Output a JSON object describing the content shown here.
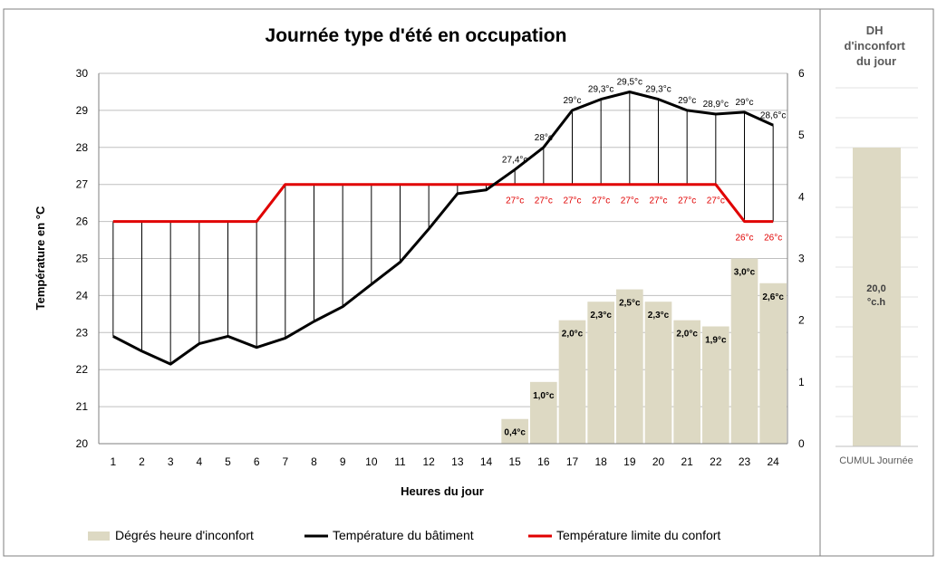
{
  "chart_data": [
    {
      "type": "bar+line",
      "title": "Journée type d'été en occupation",
      "xlabel": "Heures du jour",
      "ylabel": "Température en °C",
      "y2label": "",
      "categories": [
        "1",
        "2",
        "3",
        "4",
        "5",
        "6",
        "7",
        "8",
        "9",
        "10",
        "11",
        "12",
        "13",
        "14",
        "15",
        "16",
        "17",
        "18",
        "19",
        "20",
        "21",
        "22",
        "23",
        "24"
      ],
      "ylim": [
        20,
        30
      ],
      "yticks": [
        "20",
        "21",
        "22",
        "23",
        "24",
        "25",
        "26",
        "27",
        "28",
        "29",
        "30"
      ],
      "y2lim": [
        0,
        6
      ],
      "y2ticks": [
        "0",
        "1",
        "2",
        "3",
        "4",
        "5",
        "6"
      ],
      "grid": true,
      "legend_position": "bottom",
      "series": [
        {
          "name": "Dégrés heure d'inconfort",
          "type": "bar",
          "axis": "y2",
          "color": "#ddd9c3",
          "values": [
            0,
            0,
            0,
            0,
            0,
            0,
            0,
            0,
            0,
            0,
            0,
            0,
            0,
            0,
            0.4,
            1.0,
            2.0,
            2.3,
            2.5,
            2.3,
            2.0,
            1.9,
            3.0,
            2.6
          ],
          "labels": [
            "",
            "",
            "",
            "",
            "",
            "",
            "",
            "",
            "",
            "",
            "",
            "",
            "",
            "",
            "0,4°c",
            "1,0°c",
            "2,0°c",
            "2,3°c",
            "2,5°c",
            "2,3°c",
            "2,0°c",
            "1,9°c",
            "3,0°c",
            "2,6°c"
          ]
        },
        {
          "name": "Température du bâtiment",
          "type": "line",
          "axis": "y",
          "color": "#000000",
          "values": [
            22.9,
            22.5,
            22.15,
            22.7,
            22.9,
            22.6,
            22.85,
            23.3,
            23.7,
            24.3,
            24.9,
            25.8,
            26.75,
            26.85,
            27.4,
            28.0,
            29.0,
            29.3,
            29.5,
            29.3,
            29.0,
            28.9,
            28.95,
            28.6
          ],
          "labels": [
            "",
            "",
            "",
            "",
            "",
            "",
            "",
            "",
            "",
            "",
            "",
            "",
            "",
            "",
            "27,4°c",
            "28°c",
            "29°c",
            "29,3°c",
            "29,5°c",
            "29,3°c",
            "29°c",
            "28,9°c",
            "29°c",
            "28,6°c"
          ]
        },
        {
          "name": "Température limite du confort",
          "type": "line",
          "axis": "y",
          "color": "#e00000",
          "values": [
            26,
            26,
            26,
            26,
            26,
            26,
            27,
            27,
            27,
            27,
            27,
            27,
            27,
            27,
            27,
            27,
            27,
            27,
            27,
            27,
            27,
            27,
            26,
            26
          ],
          "labels": [
            "",
            "",
            "",
            "",
            "",
            "",
            "",
            "",
            "",
            "",
            "",
            "",
            "",
            "",
            "27°c",
            "27°c",
            "27°c",
            "27°c",
            "27°c",
            "27°c",
            "27°c",
            "27°c",
            "26°c",
            "26°c"
          ]
        }
      ]
    },
    {
      "type": "bar",
      "title": "DH d'inconfort du jour",
      "categories": [
        "CUMUL Journée"
      ],
      "values": [
        20.0
      ],
      "ylim": [
        0,
        24
      ],
      "labels": [
        "20,0 °c.h"
      ],
      "color": "#ddd9c3"
    }
  ]
}
